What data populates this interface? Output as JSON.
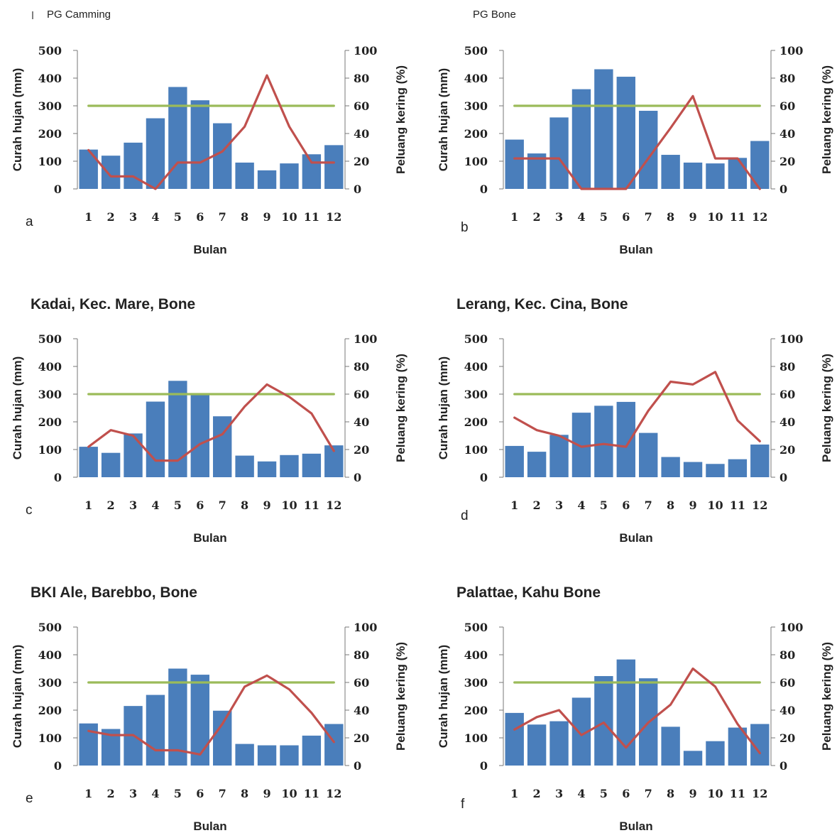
{
  "chart_data": [
    {
      "type": "bar",
      "panel_letter": "a",
      "title": "PG Camming",
      "xlabel": "Bulan",
      "ylabel": "Curah hujan (mm)",
      "y2label": "Peluang kering (%)",
      "ylim": [
        0,
        500
      ],
      "y2lim": [
        0,
        100
      ],
      "categories": [
        "1",
        "2",
        "3",
        "4",
        "5",
        "6",
        "7",
        "8",
        "9",
        "10",
        "11",
        "12"
      ],
      "y_ticks": [
        "0",
        "100",
        "200",
        "300",
        "400",
        "500"
      ],
      "y2_ticks": [
        "0",
        "20",
        "40",
        "60",
        "80",
        "100"
      ],
      "series": [
        {
          "type": "bar",
          "axis": "left",
          "color": "#4a7ebb",
          "values": [
            142,
            120,
            167,
            255,
            368,
            320,
            237,
            95,
            67,
            92,
            125,
            158
          ]
        },
        {
          "type": "line",
          "axis": "right",
          "color": "#c0504d",
          "values": [
            28,
            9,
            9,
            0,
            19,
            19,
            27,
            45,
            82,
            45,
            19,
            19
          ]
        },
        {
          "type": "line",
          "axis": "right",
          "color": "#9bbb59",
          "values": [
            60,
            60,
            60,
            60,
            60,
            60,
            60,
            60,
            60,
            60,
            60,
            60
          ]
        }
      ]
    },
    {
      "type": "bar",
      "panel_letter": "b",
      "title": "PG Bone",
      "xlabel": "Bulan",
      "ylabel": "Curah hujan (mm)",
      "y2label": "Peluang kering (%)",
      "ylim": [
        0,
        500
      ],
      "y2lim": [
        0,
        100
      ],
      "categories": [
        "1",
        "2",
        "3",
        "4",
        "5",
        "6",
        "7",
        "8",
        "9",
        "10",
        "11",
        "12"
      ],
      "y_ticks": [
        "0",
        "100",
        "200",
        "300",
        "400",
        "500"
      ],
      "y2_ticks": [
        "0",
        "20",
        "40",
        "60",
        "80",
        "100"
      ],
      "series": [
        {
          "type": "bar",
          "axis": "left",
          "color": "#4a7ebb",
          "values": [
            178,
            128,
            258,
            360,
            432,
            405,
            282,
            123,
            95,
            92,
            112,
            173
          ]
        },
        {
          "type": "line",
          "axis": "right",
          "color": "#c0504d",
          "values": [
            22,
            22,
            22,
            0,
            0,
            0,
            22,
            44,
            67,
            22,
            22,
            0
          ]
        },
        {
          "type": "line",
          "axis": "right",
          "color": "#9bbb59",
          "values": [
            60,
            60,
            60,
            60,
            60,
            60,
            60,
            60,
            60,
            60,
            60,
            60
          ]
        }
      ]
    },
    {
      "type": "bar",
      "panel_letter": "c",
      "title": "Kadai, Kec. Mare, Bone",
      "xlabel": "Bulan",
      "ylabel": "Curah hujan (mm)",
      "y2label": "Peluang kering (%)",
      "ylim": [
        0,
        500
      ],
      "y2lim": [
        0,
        100
      ],
      "categories": [
        "1",
        "2",
        "3",
        "4",
        "5",
        "6",
        "7",
        "8",
        "9",
        "10",
        "11",
        "12"
      ],
      "y_ticks": [
        "0",
        "100",
        "200",
        "300",
        "400",
        "500"
      ],
      "y2_ticks": [
        "0",
        "20",
        "40",
        "60",
        "80",
        "100"
      ],
      "series": [
        {
          "type": "bar",
          "axis": "left",
          "color": "#4a7ebb",
          "values": [
            110,
            88,
            158,
            273,
            348,
            302,
            220,
            78,
            57,
            80,
            85,
            115
          ]
        },
        {
          "type": "line",
          "axis": "right",
          "color": "#c0504d",
          "values": [
            22,
            34,
            30,
            12,
            12,
            24,
            31,
            51,
            67,
            58,
            46,
            19
          ]
        },
        {
          "type": "line",
          "axis": "right",
          "color": "#9bbb59",
          "values": [
            60,
            60,
            60,
            60,
            60,
            60,
            60,
            60,
            60,
            60,
            60,
            60
          ]
        }
      ]
    },
    {
      "type": "bar",
      "panel_letter": "d",
      "title": "Lerang, Kec. Cina, Bone",
      "xlabel": "Bulan",
      "ylabel": "Curah hujan (mm)",
      "y2label": "Peluang kering (%)",
      "ylim": [
        0,
        500
      ],
      "y2lim": [
        0,
        100
      ],
      "categories": [
        "1",
        "2",
        "3",
        "4",
        "5",
        "6",
        "7",
        "8",
        "9",
        "10",
        "11",
        "12"
      ],
      "y_ticks": [
        "0",
        "100",
        "200",
        "300",
        "400",
        "500"
      ],
      "y2_ticks": [
        "0",
        "20",
        "40",
        "60",
        "80",
        "100"
      ],
      "series": [
        {
          "type": "bar",
          "axis": "left",
          "color": "#4a7ebb",
          "values": [
            113,
            92,
            153,
            233,
            258,
            272,
            160,
            73,
            55,
            48,
            65,
            118
          ]
        },
        {
          "type": "line",
          "axis": "right",
          "color": "#c0504d",
          "values": [
            43,
            34,
            30,
            22,
            24,
            22,
            48,
            69,
            67,
            76,
            41,
            26
          ]
        },
        {
          "type": "line",
          "axis": "right",
          "color": "#9bbb59",
          "values": [
            60,
            60,
            60,
            60,
            60,
            60,
            60,
            60,
            60,
            60,
            60,
            60
          ]
        }
      ]
    },
    {
      "type": "bar",
      "panel_letter": "e",
      "title": "BKI Ale, Barebbo, Bone",
      "xlabel": "Bulan",
      "ylabel": "Curah hujan (mm)",
      "y2label": "Peluang kering (%)",
      "ylim": [
        0,
        500
      ],
      "y2lim": [
        0,
        100
      ],
      "categories": [
        "1",
        "2",
        "3",
        "4",
        "5",
        "6",
        "7",
        "8",
        "9",
        "10",
        "11",
        "12"
      ],
      "y_ticks": [
        "0",
        "100",
        "200",
        "300",
        "400",
        "500"
      ],
      "y2_ticks": [
        "0",
        "20",
        "40",
        "60",
        "80",
        "100"
      ],
      "series": [
        {
          "type": "bar",
          "axis": "left",
          "color": "#4a7ebb",
          "values": [
            152,
            132,
            215,
            255,
            350,
            328,
            198,
            78,
            73,
            73,
            108,
            150
          ]
        },
        {
          "type": "line",
          "axis": "right",
          "color": "#c0504d",
          "values": [
            25,
            22,
            22,
            11,
            11,
            8,
            30,
            57,
            65,
            55,
            38,
            17
          ]
        },
        {
          "type": "line",
          "axis": "right",
          "color": "#9bbb59",
          "values": [
            60,
            60,
            60,
            60,
            60,
            60,
            60,
            60,
            60,
            60,
            60,
            60
          ]
        }
      ]
    },
    {
      "type": "bar",
      "panel_letter": "f",
      "title": "Palattae, Kahu Bone",
      "xlabel": "Bulan",
      "ylabel": "Curah hujan (mm)",
      "y2label": "Peluang kering (%)",
      "ylim": [
        0,
        500
      ],
      "y2lim": [
        0,
        100
      ],
      "categories": [
        "1",
        "2",
        "3",
        "4",
        "5",
        "6",
        "7",
        "8",
        "9",
        "10",
        "11",
        "12"
      ],
      "y_ticks": [
        "0",
        "100",
        "200",
        "300",
        "400",
        "500"
      ],
      "y2_ticks": [
        "0",
        "20",
        "40",
        "60",
        "80",
        "100"
      ],
      "series": [
        {
          "type": "bar",
          "axis": "left",
          "color": "#4a7ebb",
          "values": [
            190,
            148,
            160,
            245,
            323,
            383,
            315,
            140,
            53,
            88,
            137,
            150
          ]
        },
        {
          "type": "line",
          "axis": "right",
          "color": "#c0504d",
          "values": [
            26,
            35,
            40,
            22,
            31,
            13,
            31,
            44,
            70,
            57,
            30,
            9
          ]
        },
        {
          "type": "line",
          "axis": "right",
          "color": "#9bbb59",
          "values": [
            60,
            60,
            60,
            60,
            60,
            60,
            60,
            60,
            60,
            60,
            60,
            60
          ]
        }
      ]
    }
  ]
}
